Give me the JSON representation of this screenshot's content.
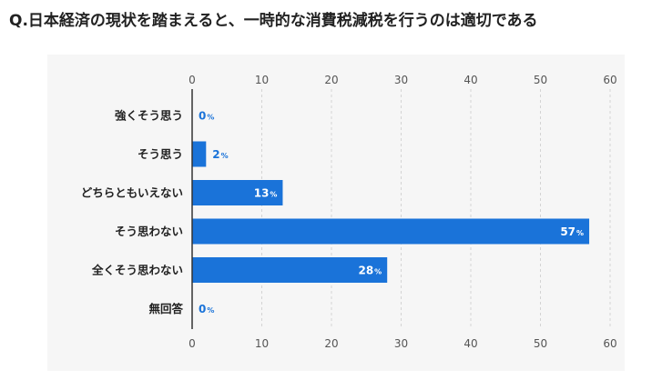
{
  "title": "Q.日本経済の現状を踏まえると、一時的な消費税減税を行うのは適切である",
  "colors": {
    "bar": "#1a73d9",
    "grid": "#d4d4d4",
    "panel": "#f6f6f6"
  },
  "chart_data": {
    "type": "bar",
    "orientation": "horizontal",
    "categories": [
      "強くそう思う",
      "そう思う",
      "どちらともいえない",
      "そう思わない",
      "全くそう思わない",
      "無回答"
    ],
    "values": [
      0,
      2,
      13,
      57,
      28,
      0
    ],
    "unit": "%",
    "xlim": [
      0,
      60
    ],
    "xticks": [
      0,
      10,
      20,
      30,
      40,
      50,
      60
    ],
    "axis_ticks_top_and_bottom": true,
    "grid": true,
    "legend": "none"
  }
}
